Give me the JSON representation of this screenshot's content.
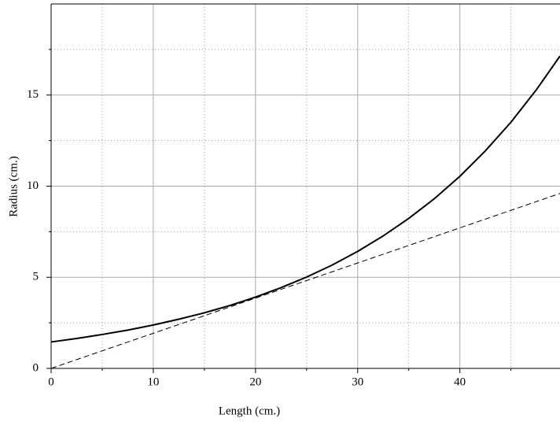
{
  "chart_data": {
    "type": "line",
    "xlabel": "Length (cm.)",
    "ylabel": "Radius (cm.)",
    "xlim": [
      0,
      49.8
    ],
    "ylim": [
      0,
      20
    ],
    "xticks": [
      0,
      10,
      20,
      30,
      40
    ],
    "yticks": [
      0,
      5,
      10,
      15
    ],
    "xminorticks": [
      5,
      15,
      25,
      35,
      45
    ],
    "yminorticks": [
      2.5,
      7.5,
      12.5,
      17.5
    ],
    "grid": true,
    "series": [
      {
        "color": "#000000",
        "dash": false,
        "x": [
          0,
          2.5,
          5,
          7.5,
          10,
          12.5,
          15,
          17.5,
          20,
          22.5,
          25,
          27.5,
          30,
          32.5,
          35,
          37.5,
          40,
          42.5,
          45,
          47.5,
          49.8
        ],
        "values": [
          1.45,
          1.64,
          1.86,
          2.1,
          2.38,
          2.7,
          3.05,
          3.45,
          3.91,
          4.43,
          5.01,
          5.67,
          6.42,
          7.27,
          8.23,
          9.31,
          10.54,
          11.94,
          13.51,
          15.3,
          17.14
        ]
      },
      {
        "color": "#000000",
        "dash": true,
        "x": [
          0,
          49.8
        ],
        "values": [
          0,
          9.6
        ]
      }
    ]
  }
}
